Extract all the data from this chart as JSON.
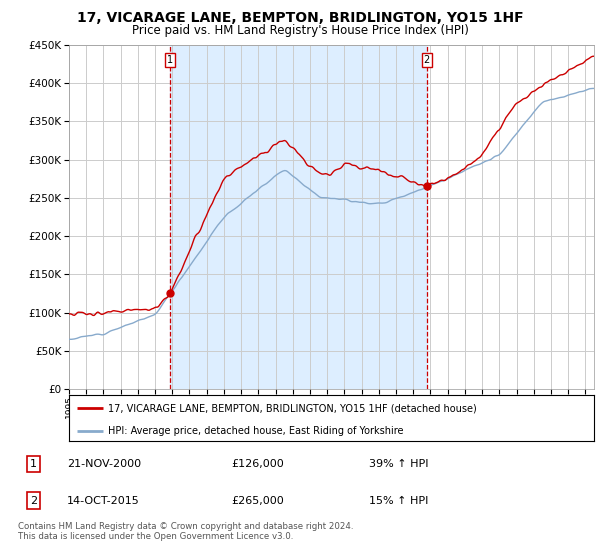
{
  "title": "17, VICARAGE LANE, BEMPTON, BRIDLINGTON, YO15 1HF",
  "subtitle": "Price paid vs. HM Land Registry's House Price Index (HPI)",
  "title_fontsize": 10,
  "subtitle_fontsize": 8.5,
  "red_label": "17, VICARAGE LANE, BEMPTON, BRIDLINGTON, YO15 1HF (detached house)",
  "blue_label": "HPI: Average price, detached house, East Riding of Yorkshire",
  "sale1_date_str": "21-NOV-2000",
  "sale1_x": 2000.89,
  "sale1_y": 126000,
  "sale1_label": "£126,000",
  "sale1_pct": "39% ↑ HPI",
  "sale2_date_str": "14-OCT-2015",
  "sale2_x": 2015.78,
  "sale2_y": 265000,
  "sale2_label": "£265,000",
  "sale2_pct": "15% ↑ HPI",
  "ylim": [
    0,
    450000
  ],
  "xlim": [
    1995,
    2025.5
  ],
  "yticks": [
    0,
    50000,
    100000,
    150000,
    200000,
    250000,
    300000,
    350000,
    400000,
    450000
  ],
  "footer": "Contains HM Land Registry data © Crown copyright and database right 2024.\nThis data is licensed under the Open Government Licence v3.0.",
  "bg_color": "#ffffff",
  "grid_color": "#cccccc",
  "shade_color": "#ddeeff",
  "red_color": "#cc0000",
  "blue_color": "#88aacc"
}
